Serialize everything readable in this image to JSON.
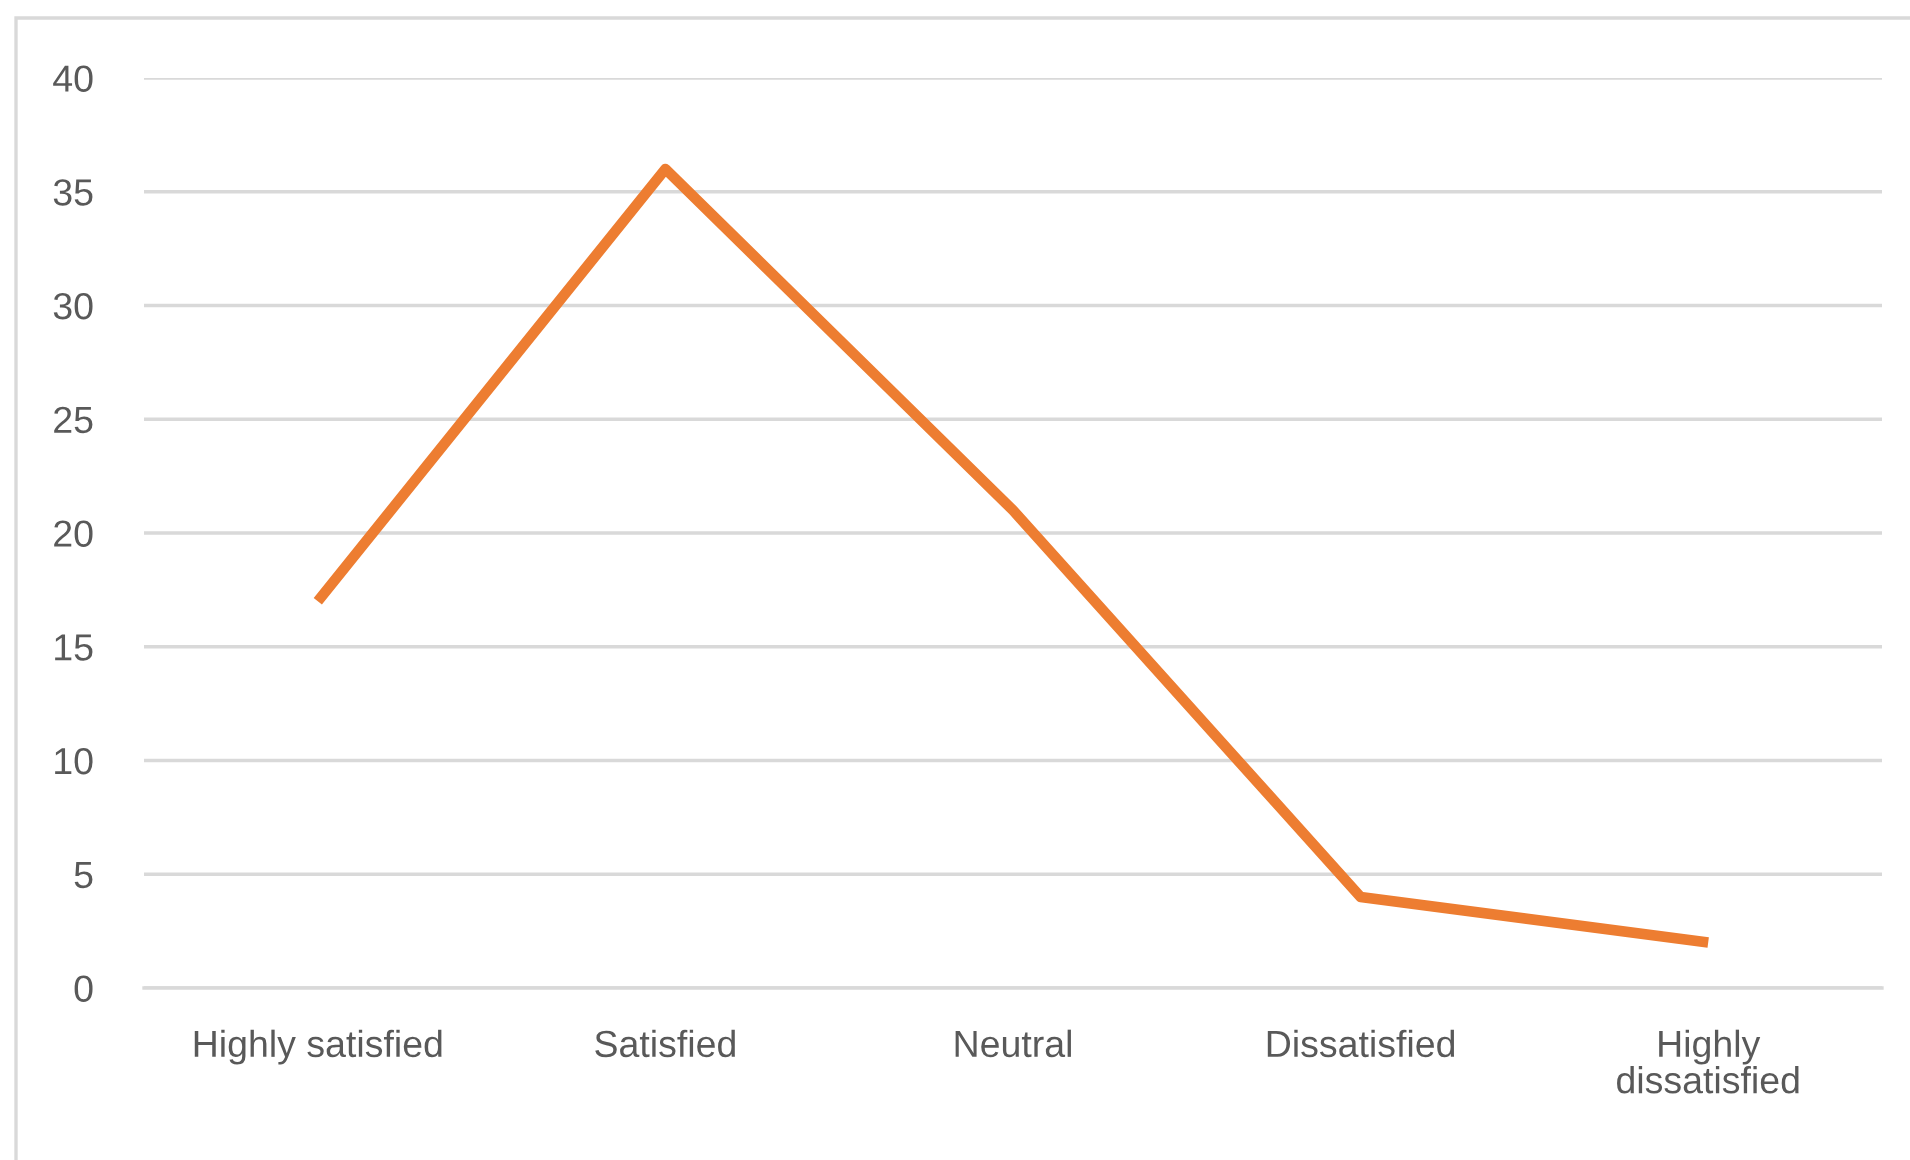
{
  "chart_data": {
    "type": "line",
    "categories": [
      "Highly satisfied",
      "Satisfied",
      "Neutral",
      "Dissatisfied",
      "Highly\ndissatisfied"
    ],
    "series": [
      {
        "color": "#ed7d31",
        "values": [
          17,
          36,
          21,
          4,
          2
        ]
      }
    ],
    "ylim": [
      0,
      40
    ],
    "yticks": [
      0,
      5,
      10,
      15,
      20,
      25,
      30,
      35,
      40
    ],
    "grid": "y",
    "marker": "none",
    "line_style": "solid"
  }
}
